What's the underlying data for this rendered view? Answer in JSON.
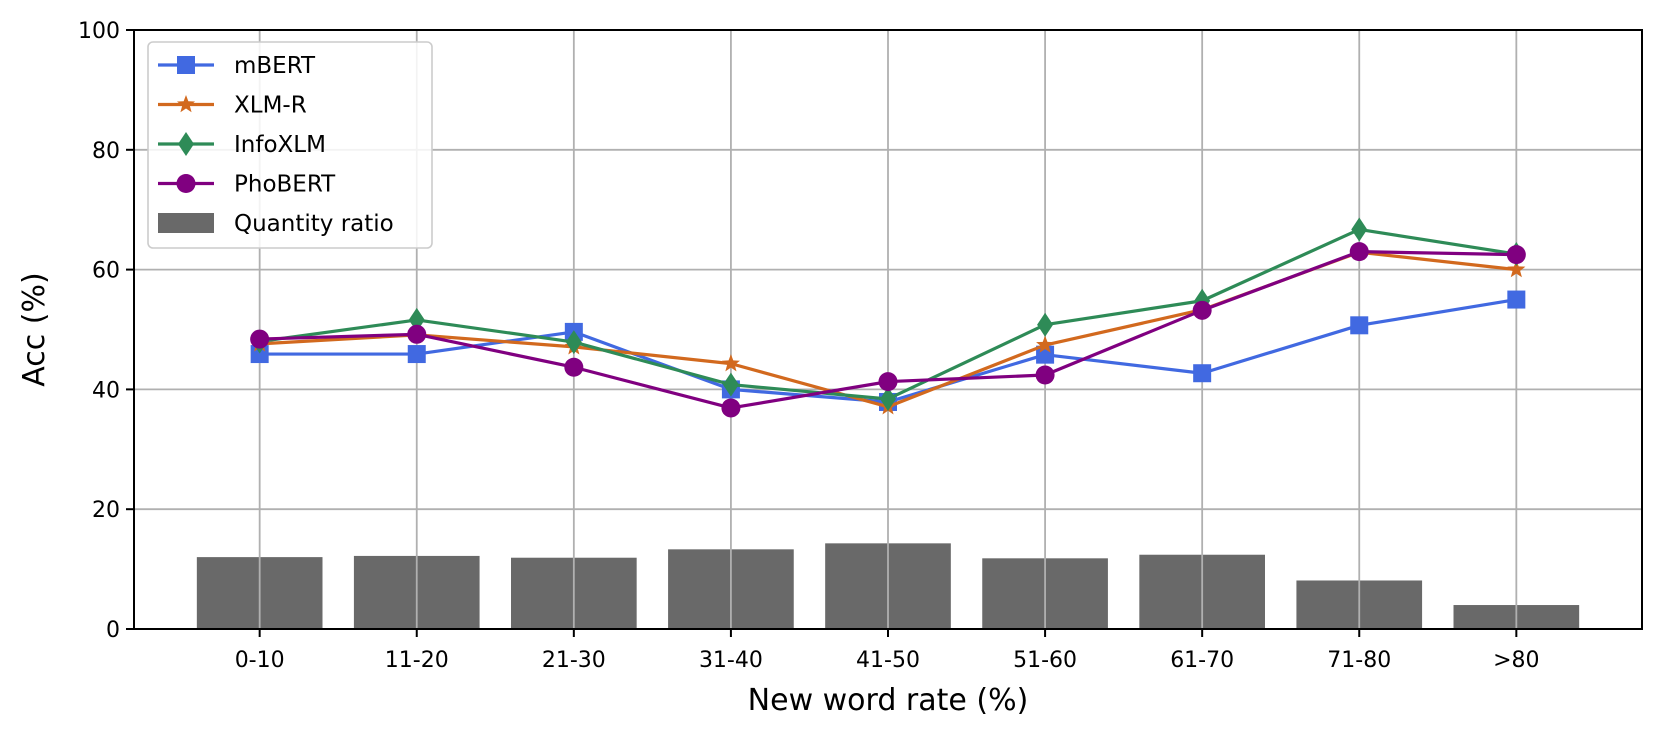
{
  "chart_data": {
    "type": "bar+line",
    "xlabel": "New word rate (%)",
    "ylabel": "Acc (%)",
    "ylim": [
      0,
      100
    ],
    "yticks": [
      0,
      20,
      40,
      60,
      80,
      100
    ],
    "grid": true,
    "legend_position": "top-left",
    "categories": [
      "0-10",
      "11-20",
      "21-30",
      "31-40",
      "41-50",
      "51-60",
      "61-70",
      "71-80",
      ">80"
    ],
    "bar_series": {
      "name": "Quantity ratio",
      "color": "#696969",
      "values": [
        12.0,
        12.2,
        11.9,
        13.3,
        14.3,
        11.8,
        12.4,
        8.1,
        4.0
      ]
    },
    "series": [
      {
        "name": "mBERT",
        "color": "#4169e1",
        "marker": "square",
        "values": [
          45.9,
          45.9,
          49.6,
          40.0,
          37.9,
          45.8,
          42.7,
          50.7,
          55.0
        ]
      },
      {
        "name": "XLM-R",
        "color": "#d2691e",
        "marker": "star",
        "values": [
          47.6,
          49.1,
          47.1,
          44.3,
          37.1,
          47.4,
          53.3,
          62.9,
          60.0
        ]
      },
      {
        "name": "InfoXLM",
        "color": "#2e8b57",
        "marker": "diamond",
        "values": [
          48.0,
          51.6,
          47.9,
          40.8,
          38.4,
          50.8,
          54.8,
          66.7,
          62.6
        ]
      },
      {
        "name": "PhoBERT",
        "color": "#800080",
        "marker": "circle",
        "values": [
          48.4,
          49.2,
          43.7,
          36.9,
          41.3,
          42.4,
          53.2,
          63.0,
          62.5
        ]
      }
    ]
  }
}
